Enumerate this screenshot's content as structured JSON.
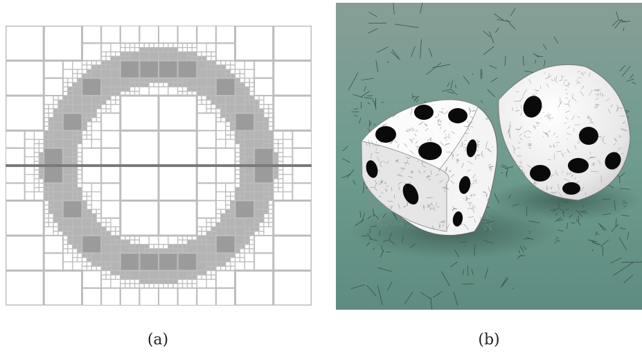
{
  "figure": {
    "panels": [
      {
        "id": "a",
        "caption": "(a)"
      },
      {
        "id": "b",
        "caption": "(b)"
      }
    ]
  },
  "colors": {
    "background": "#ffffff",
    "quadtree_line": "#bdbdbd",
    "ring_fill": "#8a8a8a",
    "ring_fine": "#9b9b9b",
    "midline": "#7a7a7a",
    "table_top": "#6e9c8f",
    "table_bottom": "#5d8a7e",
    "cell_edge": "#2c3d38",
    "die_body": "#f2f2f2",
    "pip": "#0a0a0a"
  }
}
